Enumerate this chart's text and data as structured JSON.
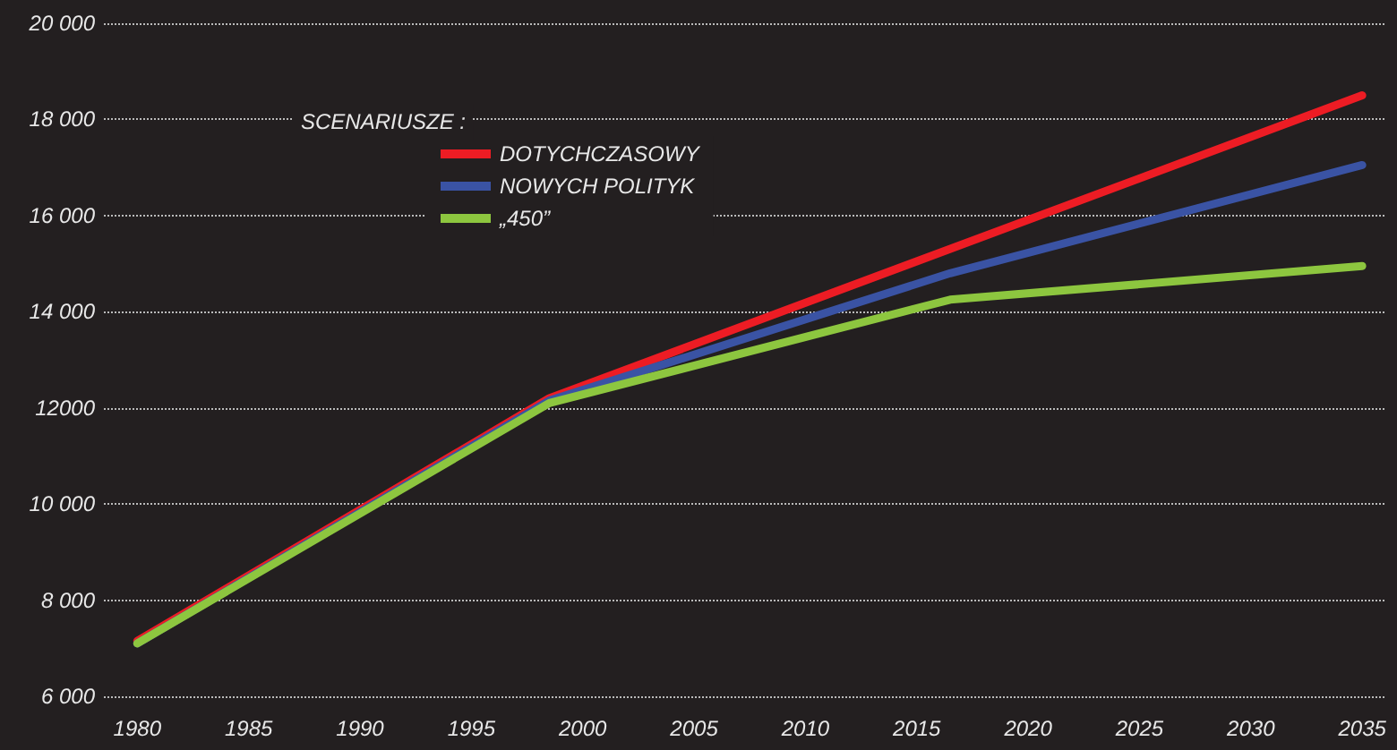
{
  "chart_data": {
    "type": "line",
    "legend_title": "SCENARIUSZE :",
    "series": [
      {
        "name": "DOTYCHCZASOWY",
        "color": "#ed1c24",
        "x": [
          1980,
          1998.5,
          2035
        ],
        "values": [
          7150,
          12200,
          18500
        ]
      },
      {
        "name": "NOWYCH POLITYK",
        "color": "#3a53a4",
        "x": [
          1980,
          1998.5,
          2016.5,
          2035
        ],
        "values": [
          7100,
          12150,
          14800,
          17050
        ]
      },
      {
        "name": "„450”",
        "color": "#8dc63f",
        "x": [
          1980,
          1998.5,
          2016.5,
          2035
        ],
        "values": [
          7100,
          12100,
          14250,
          14950
        ]
      }
    ],
    "xlim": [
      1978.5,
      2036
    ],
    "xticks": [
      1980,
      1985,
      1990,
      1995,
      2000,
      2005,
      2010,
      2015,
      2020,
      2025,
      2030,
      2035
    ],
    "ylim": [
      6000,
      20000
    ],
    "yticks": [
      {
        "value": 6000,
        "label": "6 000"
      },
      {
        "value": 8000,
        "label": "8 000"
      },
      {
        "value": 10000,
        "label": "10 000"
      },
      {
        "value": 12000,
        "label": "12000"
      },
      {
        "value": 14000,
        "label": "14 000"
      },
      {
        "value": 16000,
        "label": "16 000"
      },
      {
        "value": 18000,
        "label": "18 000"
      },
      {
        "value": 20000,
        "label": "20 000"
      }
    ],
    "grid": "y",
    "legend": "top left",
    "marker": "none",
    "line_style": "solid"
  }
}
